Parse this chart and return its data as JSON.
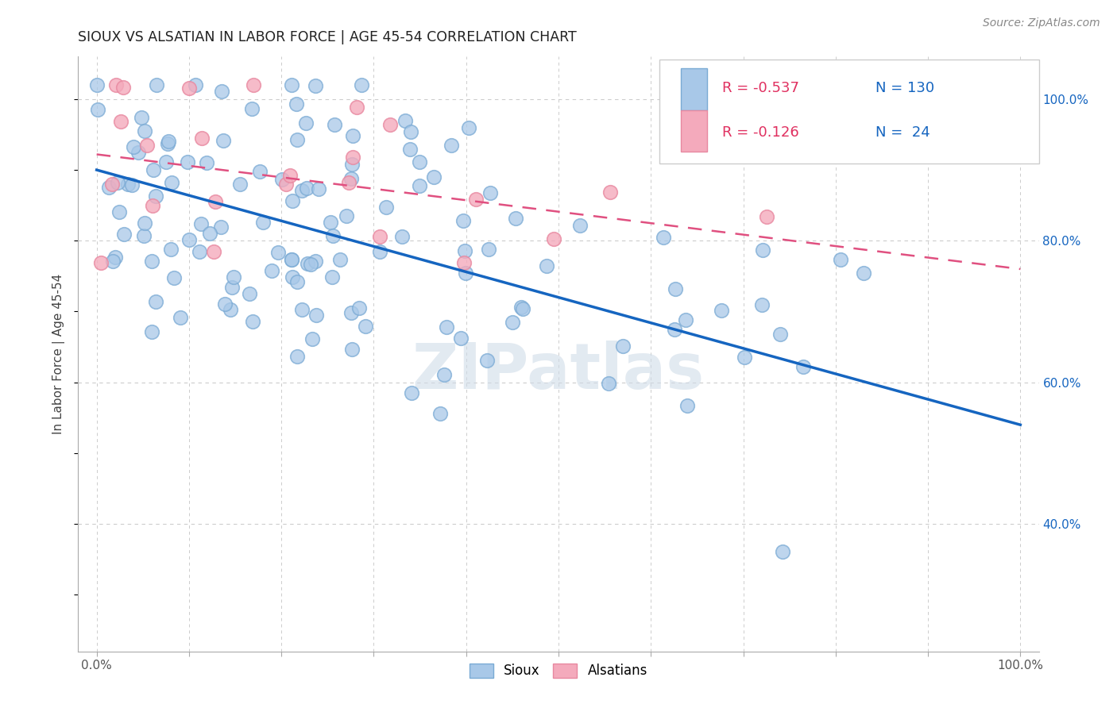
{
  "title": "SIOUX VS ALSATIAN IN LABOR FORCE | AGE 45-54 CORRELATION CHART",
  "source_text": "Source: ZipAtlas.com",
  "ylabel": "In Labor Force | Age 45-54",
  "xlim": [
    -0.02,
    1.02
  ],
  "ylim": [
    0.22,
    1.06
  ],
  "x_ticks": [
    0.0,
    0.1,
    0.2,
    0.3,
    0.4,
    0.5,
    0.6,
    0.7,
    0.8,
    0.9,
    1.0
  ],
  "x_tick_labels": [
    "0.0%",
    "",
    "",
    "",
    "",
    "",
    "",
    "",
    "",
    "",
    "100.0%"
  ],
  "y_tick_labels_right": [
    "40.0%",
    "60.0%",
    "80.0%",
    "100.0%"
  ],
  "y_ticks_right": [
    0.4,
    0.6,
    0.8,
    1.0
  ],
  "legend_blue_r": "-0.537",
  "legend_blue_n": "130",
  "legend_pink_r": "-0.126",
  "legend_pink_n": " 24",
  "sioux_color": "#A8C8E8",
  "alsatian_color": "#F4AABC",
  "sioux_edge_color": "#7AAAD4",
  "alsatian_edge_color": "#E888A0",
  "trendline_blue_color": "#1565C0",
  "trendline_pink_color": "#E05080",
  "background_color": "#FFFFFF",
  "grid_color": "#CCCCCC",
  "watermark_color": "#D0DCE8",
  "watermark_text": "ZIPatlas",
  "legend_r_color": "#E03060",
  "legend_n_color": "#1565C0",
  "blue_trend_x0": 0.0,
  "blue_trend_x1": 1.0,
  "blue_trend_y0": 0.9,
  "blue_trend_y1": 0.54,
  "pink_trend_x0": 0.0,
  "pink_trend_x1": 1.0,
  "pink_trend_y0": 0.922,
  "pink_trend_y1": 0.76,
  "sioux_seed": 77,
  "alsatian_seed": 99,
  "n_sioux": 130,
  "n_alsatian": 24
}
